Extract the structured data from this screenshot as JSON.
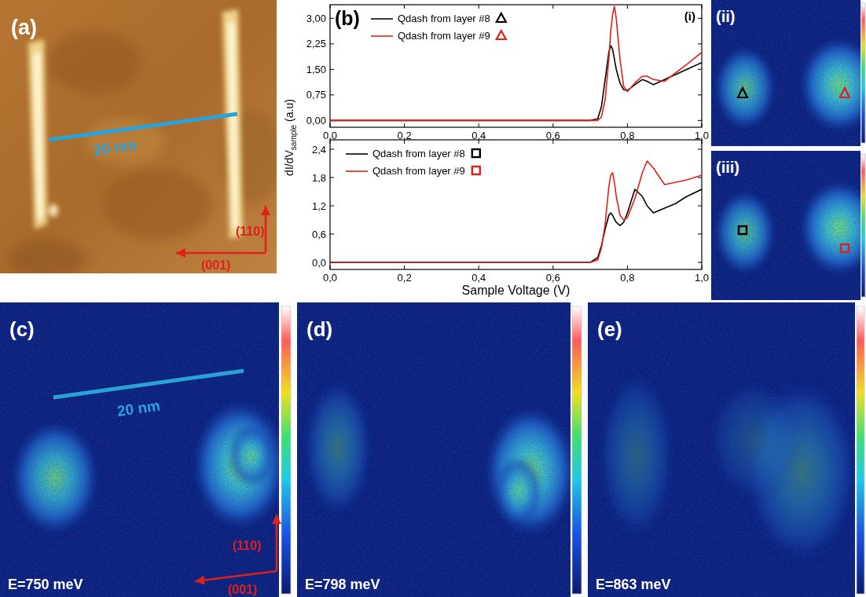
{
  "chart_data": [
    {
      "type": "line",
      "title": "(i)",
      "x": [
        0,
        0.1,
        0.2,
        0.3,
        0.4,
        0.5,
        0.6,
        0.7,
        0.72,
        0.73,
        0.74,
        0.75,
        0.755,
        0.76,
        0.765,
        0.77,
        0.78,
        0.79,
        0.8,
        0.82,
        0.84,
        0.853,
        0.87,
        0.9,
        0.93,
        0.96,
        1.0
      ],
      "xlim": [
        0,
        1
      ],
      "xticks": [
        {
          "value": 0,
          "label": "0,0"
        },
        {
          "value": 0.2,
          "label": "0,2"
        },
        {
          "value": 0.4,
          "label": "0,4"
        },
        {
          "value": 0.6,
          "label": "0,6"
        },
        {
          "value": 0.8,
          "label": "0,8"
        },
        {
          "value": 1,
          "label": "1,0"
        }
      ],
      "ylim": [
        -0.2,
        3.4
      ],
      "yticks": [
        {
          "value": 0,
          "label": "0,00"
        },
        {
          "value": 0.75,
          "label": "0,75"
        },
        {
          "value": 1.5,
          "label": "1,50"
        },
        {
          "value": 2.25,
          "label": "2,25"
        },
        {
          "value": 3,
          "label": "3,00"
        }
      ],
      "legend": "upper left",
      "series": [
        {
          "name": "Qdash from layer #8",
          "color": "#000000",
          "marker": "triangle",
          "values": [
            0,
            0,
            0,
            0,
            0,
            0,
            0,
            0,
            0.05,
            0.4,
            1.2,
            2.0,
            2.2,
            2.1,
            1.8,
            1.5,
            1.1,
            0.9,
            0.88,
            1.05,
            1.2,
            1.15,
            1.05,
            1.2,
            1.35,
            1.5,
            1.7
          ]
        },
        {
          "name": "Qdash from layer #9",
          "color": "#e0201b",
          "marker": "triangle",
          "values": [
            0,
            0,
            0,
            0,
            0,
            0,
            0,
            0,
            0,
            0.1,
            0.6,
            1.8,
            2.6,
            3.1,
            3.35,
            3.0,
            1.8,
            1.0,
            0.85,
            1.1,
            1.3,
            1.3,
            1.2,
            1.15,
            1.4,
            1.65,
            2.0
          ]
        }
      ]
    },
    {
      "type": "line",
      "x": [
        0,
        0.1,
        0.2,
        0.3,
        0.4,
        0.5,
        0.6,
        0.7,
        0.72,
        0.73,
        0.74,
        0.75,
        0.755,
        0.76,
        0.765,
        0.77,
        0.78,
        0.79,
        0.8,
        0.82,
        0.84,
        0.853,
        0.87,
        0.9,
        0.93,
        0.96,
        1.0
      ],
      "xlim": [
        0,
        1
      ],
      "xticks": [
        {
          "value": 0,
          "label": "0,0"
        },
        {
          "value": 0.2,
          "label": "0,2"
        },
        {
          "value": 0.4,
          "label": "0,4"
        },
        {
          "value": 0.6,
          "label": "0,6"
        },
        {
          "value": 0.8,
          "label": "0,8"
        },
        {
          "value": 1,
          "label": "1,0"
        }
      ],
      "ylim": [
        -0.15,
        2.6
      ],
      "yticks": [
        {
          "value": 0,
          "label": "0,0"
        },
        {
          "value": 0.6,
          "label": "0,6"
        },
        {
          "value": 1.2,
          "label": "1,2"
        },
        {
          "value": 1.8,
          "label": "1,8"
        },
        {
          "value": 2.4,
          "label": "2,4"
        }
      ],
      "legend": "upper left",
      "series": [
        {
          "name": "Qdash from layer #8",
          "color": "#000000",
          "marker": "square",
          "values": [
            0,
            0,
            0,
            0,
            0,
            0,
            0,
            0,
            0.1,
            0.35,
            0.7,
            1.0,
            1.05,
            1.0,
            0.92,
            0.85,
            0.78,
            0.85,
            1.05,
            1.55,
            1.4,
            1.2,
            1.05,
            1.15,
            1.25,
            1.4,
            1.55
          ]
        },
        {
          "name": "Qdash from layer #9",
          "color": "#e0201b",
          "marker": "square",
          "values": [
            0,
            0,
            0,
            0,
            0,
            0,
            0,
            0,
            0.05,
            0.3,
            0.8,
            1.6,
            1.85,
            1.9,
            1.7,
            1.4,
            1.0,
            0.9,
            0.95,
            1.35,
            1.9,
            2.15,
            2.0,
            1.65,
            1.7,
            1.75,
            1.85
          ]
        }
      ]
    }
  ],
  "panel_b": {
    "label": "(b)",
    "xlabel": "Sample Voltage (V)",
    "ylabel_parts": [
      "dI/dV",
      "sample",
      "(a.u)"
    ]
  },
  "images": {
    "a": {
      "label": "(a)",
      "scale_label": "20 nm",
      "arrow_labels": [
        "(110)",
        "(001)"
      ]
    },
    "ii": {
      "label": "(ii)"
    },
    "iii": {
      "label": "(iii)"
    },
    "c": {
      "label": "(c)",
      "scale_label": "20 nm",
      "arrow_labels": [
        "(110)",
        "(001)"
      ],
      "energy_label": "E=750 meV"
    },
    "d": {
      "label": "(d)",
      "energy_label": "E=798 meV"
    },
    "e": {
      "label": "(e)",
      "energy_label": "E=863 meV"
    }
  }
}
